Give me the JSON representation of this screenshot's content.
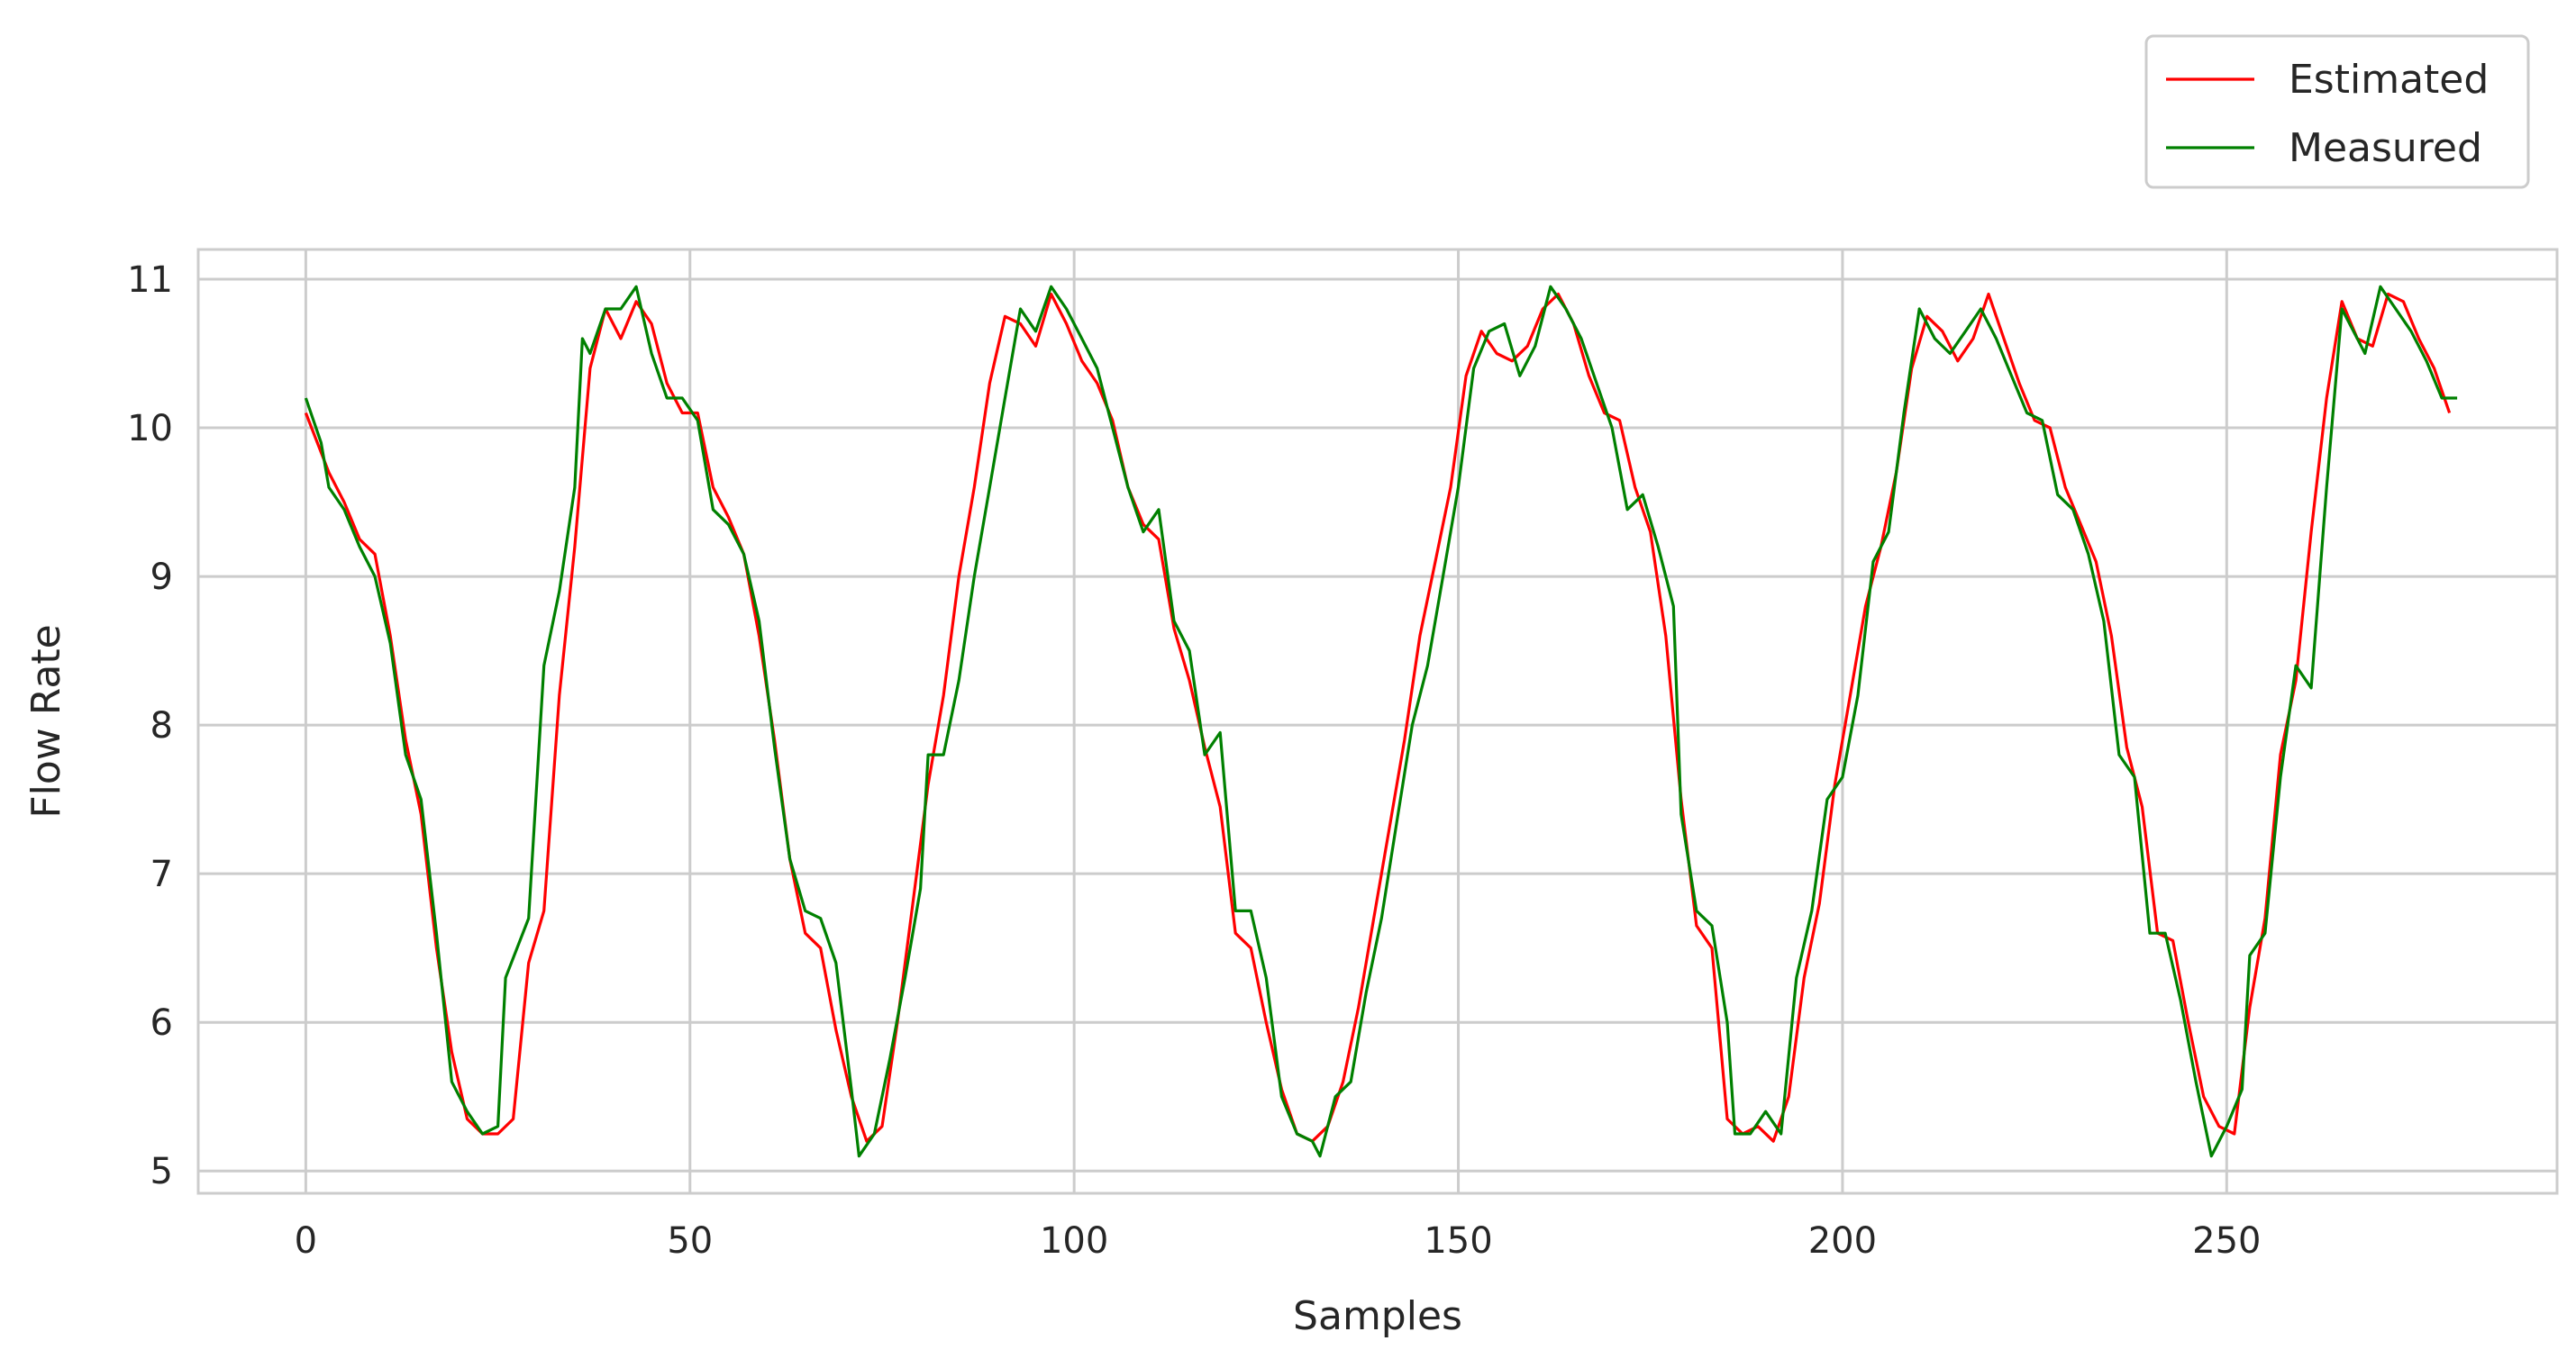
{
  "chart_data": {
    "type": "line",
    "title": "",
    "xlabel": "Samples",
    "ylabel": "Flow Rate",
    "xlim": [
      -14,
      293
    ],
    "ylim": [
      4.85,
      11.2
    ],
    "xticks": [
      0,
      50,
      100,
      150,
      200,
      250
    ],
    "yticks": [
      5,
      6,
      7,
      8,
      9,
      10,
      11
    ],
    "grid": true,
    "legend": {
      "position": "top-right, above plot"
    },
    "series": [
      {
        "name": "Estimated",
        "color": "#ff0000",
        "points": [
          [
            0,
            10.1
          ],
          [
            3,
            9.7
          ],
          [
            5,
            9.5
          ],
          [
            7,
            9.25
          ],
          [
            9,
            9.15
          ],
          [
            11,
            8.6
          ],
          [
            13,
            7.9
          ],
          [
            15,
            7.4
          ],
          [
            17,
            6.5
          ],
          [
            19,
            5.8
          ],
          [
            21,
            5.35
          ],
          [
            23,
            5.25
          ],
          [
            25,
            5.25
          ],
          [
            27,
            5.35
          ],
          [
            29,
            6.4
          ],
          [
            31,
            6.75
          ],
          [
            33,
            8.2
          ],
          [
            35,
            9.2
          ],
          [
            37,
            10.4
          ],
          [
            39,
            10.8
          ],
          [
            41,
            10.6
          ],
          [
            43,
            10.85
          ],
          [
            45,
            10.7
          ],
          [
            47,
            10.3
          ],
          [
            49,
            10.1
          ],
          [
            51,
            10.1
          ],
          [
            53,
            9.6
          ],
          [
            55,
            9.4
          ],
          [
            57,
            9.15
          ],
          [
            59,
            8.6
          ],
          [
            61,
            7.9
          ],
          [
            63,
            7.1
          ],
          [
            65,
            6.6
          ],
          [
            67,
            6.5
          ],
          [
            69,
            5.95
          ],
          [
            71,
            5.5
          ],
          [
            73,
            5.2
          ],
          [
            75,
            5.3
          ],
          [
            77,
            6.0
          ],
          [
            79,
            6.8
          ],
          [
            81,
            7.6
          ],
          [
            83,
            8.2
          ],
          [
            85,
            9.0
          ],
          [
            87,
            9.6
          ],
          [
            89,
            10.3
          ],
          [
            91,
            10.75
          ],
          [
            93,
            10.7
          ],
          [
            95,
            10.55
          ],
          [
            97,
            10.9
          ],
          [
            99,
            10.7
          ],
          [
            101,
            10.45
          ],
          [
            103,
            10.3
          ],
          [
            105,
            10.05
          ],
          [
            107,
            9.6
          ],
          [
            109,
            9.35
          ],
          [
            111,
            9.25
          ],
          [
            113,
            8.65
          ],
          [
            115,
            8.3
          ],
          [
            117,
            7.85
          ],
          [
            119,
            7.45
          ],
          [
            121,
            6.6
          ],
          [
            123,
            6.5
          ],
          [
            125,
            6.0
          ],
          [
            127,
            5.55
          ],
          [
            129,
            5.25
          ],
          [
            131,
            5.2
          ],
          [
            133,
            5.3
          ],
          [
            135,
            5.6
          ],
          [
            137,
            6.1
          ],
          [
            139,
            6.7
          ],
          [
            141,
            7.3
          ],
          [
            143,
            7.9
          ],
          [
            145,
            8.6
          ],
          [
            147,
            9.1
          ],
          [
            149,
            9.6
          ],
          [
            151,
            10.35
          ],
          [
            153,
            10.65
          ],
          [
            155,
            10.5
          ],
          [
            157,
            10.45
          ],
          [
            159,
            10.55
          ],
          [
            161,
            10.8
          ],
          [
            163,
            10.9
          ],
          [
            165,
            10.7
          ],
          [
            167,
            10.35
          ],
          [
            169,
            10.1
          ],
          [
            171,
            10.05
          ],
          [
            173,
            9.6
          ],
          [
            175,
            9.3
          ],
          [
            177,
            8.6
          ],
          [
            179,
            7.5
          ],
          [
            181,
            6.65
          ],
          [
            183,
            6.5
          ],
          [
            185,
            5.35
          ],
          [
            187,
            5.25
          ],
          [
            189,
            5.3
          ],
          [
            191,
            5.2
          ],
          [
            193,
            5.5
          ],
          [
            195,
            6.3
          ],
          [
            197,
            6.8
          ],
          [
            199,
            7.6
          ],
          [
            201,
            8.2
          ],
          [
            203,
            8.8
          ],
          [
            205,
            9.2
          ],
          [
            207,
            9.7
          ],
          [
            209,
            10.4
          ],
          [
            211,
            10.75
          ],
          [
            213,
            10.65
          ],
          [
            215,
            10.45
          ],
          [
            217,
            10.6
          ],
          [
            219,
            10.9
          ],
          [
            221,
            10.6
          ],
          [
            223,
            10.3
          ],
          [
            225,
            10.05
          ],
          [
            227,
            10.0
          ],
          [
            229,
            9.6
          ],
          [
            231,
            9.35
          ],
          [
            233,
            9.1
          ],
          [
            235,
            8.6
          ],
          [
            237,
            7.85
          ],
          [
            239,
            7.45
          ],
          [
            241,
            6.6
          ],
          [
            243,
            6.55
          ],
          [
            245,
            6.0
          ],
          [
            247,
            5.5
          ],
          [
            249,
            5.3
          ],
          [
            251,
            5.25
          ],
          [
            253,
            6.1
          ],
          [
            255,
            6.7
          ],
          [
            257,
            7.8
          ],
          [
            259,
            8.3
          ],
          [
            261,
            9.3
          ],
          [
            263,
            10.2
          ],
          [
            265,
            10.85
          ],
          [
            267,
            10.6
          ],
          [
            269,
            10.55
          ],
          [
            271,
            10.9
          ],
          [
            273,
            10.85
          ],
          [
            275,
            10.6
          ],
          [
            277,
            10.4
          ],
          [
            279,
            10.1
          ]
        ]
      },
      {
        "name": "Measured",
        "color": "#008000",
        "points": [
          [
            0,
            10.2
          ],
          [
            2,
            9.9
          ],
          [
            3,
            9.6
          ],
          [
            5,
            9.45
          ],
          [
            7,
            9.2
          ],
          [
            9,
            9.0
          ],
          [
            11,
            8.55
          ],
          [
            13,
            7.8
          ],
          [
            15,
            7.5
          ],
          [
            17,
            6.6
          ],
          [
            19,
            5.6
          ],
          [
            21,
            5.4
          ],
          [
            23,
            5.25
          ],
          [
            25,
            5.3
          ],
          [
            26,
            6.3
          ],
          [
            29,
            6.7
          ],
          [
            31,
            8.4
          ],
          [
            33,
            8.9
          ],
          [
            35,
            9.6
          ],
          [
            36,
            10.6
          ],
          [
            37,
            10.5
          ],
          [
            39,
            10.8
          ],
          [
            41,
            10.8
          ],
          [
            43,
            10.95
          ],
          [
            45,
            10.5
          ],
          [
            47,
            10.2
          ],
          [
            49,
            10.2
          ],
          [
            51,
            10.05
          ],
          [
            53,
            9.45
          ],
          [
            55,
            9.35
          ],
          [
            57,
            9.15
          ],
          [
            59,
            8.7
          ],
          [
            61,
            7.85
          ],
          [
            63,
            7.1
          ],
          [
            65,
            6.75
          ],
          [
            67,
            6.7
          ],
          [
            69,
            6.4
          ],
          [
            71,
            5.55
          ],
          [
            72,
            5.1
          ],
          [
            74,
            5.25
          ],
          [
            76,
            5.75
          ],
          [
            78,
            6.3
          ],
          [
            80,
            6.9
          ],
          [
            81,
            7.8
          ],
          [
            83,
            7.8
          ],
          [
            85,
            8.3
          ],
          [
            87,
            9.0
          ],
          [
            89,
            9.6
          ],
          [
            91,
            10.2
          ],
          [
            93,
            10.8
          ],
          [
            95,
            10.65
          ],
          [
            97,
            10.95
          ],
          [
            99,
            10.8
          ],
          [
            101,
            10.6
          ],
          [
            103,
            10.4
          ],
          [
            105,
            10.0
          ],
          [
            107,
            9.6
          ],
          [
            109,
            9.3
          ],
          [
            111,
            9.45
          ],
          [
            113,
            8.7
          ],
          [
            115,
            8.5
          ],
          [
            117,
            7.8
          ],
          [
            119,
            7.95
          ],
          [
            121,
            6.75
          ],
          [
            123,
            6.75
          ],
          [
            125,
            6.3
          ],
          [
            127,
            5.5
          ],
          [
            129,
            5.25
          ],
          [
            131,
            5.2
          ],
          [
            132,
            5.1
          ],
          [
            134,
            5.5
          ],
          [
            136,
            5.6
          ],
          [
            138,
            6.2
          ],
          [
            140,
            6.7
          ],
          [
            142,
            7.35
          ],
          [
            144,
            8.0
          ],
          [
            146,
            8.4
          ],
          [
            148,
            9.0
          ],
          [
            150,
            9.6
          ],
          [
            152,
            10.4
          ],
          [
            154,
            10.65
          ],
          [
            156,
            10.7
          ],
          [
            158,
            10.35
          ],
          [
            160,
            10.55
          ],
          [
            162,
            10.95
          ],
          [
            164,
            10.8
          ],
          [
            166,
            10.6
          ],
          [
            168,
            10.3
          ],
          [
            170,
            10.0
          ],
          [
            172,
            9.45
          ],
          [
            174,
            9.55
          ],
          [
            176,
            9.2
          ],
          [
            178,
            8.8
          ],
          [
            179,
            7.4
          ],
          [
            181,
            6.75
          ],
          [
            183,
            6.65
          ],
          [
            185,
            6.0
          ],
          [
            186,
            5.25
          ],
          [
            188,
            5.25
          ],
          [
            190,
            5.4
          ],
          [
            192,
            5.25
          ],
          [
            194,
            6.3
          ],
          [
            196,
            6.75
          ],
          [
            198,
            7.5
          ],
          [
            200,
            7.65
          ],
          [
            202,
            8.2
          ],
          [
            204,
            9.1
          ],
          [
            206,
            9.3
          ],
          [
            208,
            10.1
          ],
          [
            210,
            10.8
          ],
          [
            212,
            10.6
          ],
          [
            214,
            10.5
          ],
          [
            216,
            10.65
          ],
          [
            218,
            10.8
          ],
          [
            220,
            10.6
          ],
          [
            222,
            10.35
          ],
          [
            224,
            10.1
          ],
          [
            226,
            10.05
          ],
          [
            228,
            9.55
          ],
          [
            230,
            9.45
          ],
          [
            232,
            9.15
          ],
          [
            234,
            8.7
          ],
          [
            236,
            7.8
          ],
          [
            238,
            7.65
          ],
          [
            240,
            6.6
          ],
          [
            242,
            6.6
          ],
          [
            244,
            6.15
          ],
          [
            246,
            5.6
          ],
          [
            248,
            5.1
          ],
          [
            250,
            5.3
          ],
          [
            252,
            5.55
          ],
          [
            253,
            6.45
          ],
          [
            255,
            6.6
          ],
          [
            257,
            7.65
          ],
          [
            259,
            8.4
          ],
          [
            261,
            8.25
          ],
          [
            263,
            9.6
          ],
          [
            265,
            10.8
          ],
          [
            267,
            10.6
          ],
          [
            268,
            10.5
          ],
          [
            270,
            10.95
          ],
          [
            272,
            10.8
          ],
          [
            274,
            10.65
          ],
          [
            276,
            10.45
          ],
          [
            278,
            10.2
          ],
          [
            280,
            10.2
          ]
        ]
      }
    ]
  },
  "style": {
    "background": "#ffffff",
    "grid_color": "#cccccc",
    "frame_color": "#cccccc",
    "text_color": "#262626",
    "legend_border": "#cccccc"
  }
}
